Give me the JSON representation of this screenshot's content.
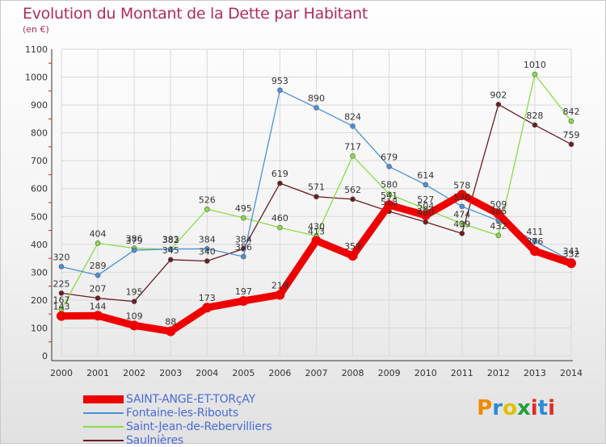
{
  "header": {
    "title": "Evolution du Montant de la Dette par Habitant",
    "subtitle": "(en €)"
  },
  "logo": {
    "text": "Proxiti",
    "colors": [
      "#f08a00",
      "#2a8ad8",
      "#e0c000",
      "#20a040",
      "#e02a2a",
      "#2a8ad8",
      "#e02a2a"
    ]
  },
  "chart_data": {
    "type": "line",
    "title": "Evolution du Montant de la Dette par Habitant",
    "ylabel": "(en €)",
    "xlabel": "",
    "x": [
      "2000",
      "2001",
      "2002",
      "2003",
      "2004",
      "2005",
      "2006",
      "2007",
      "2008",
      "2009",
      "2010",
      "2011",
      "2012",
      "2013",
      "2014"
    ],
    "ylim": [
      0,
      1100
    ],
    "yticks": [
      0,
      100,
      200,
      300,
      400,
      500,
      600,
      700,
      800,
      900,
      1000,
      1100
    ],
    "grid": true,
    "legend_position": "bottom-left",
    "series": [
      {
        "name": "Saulnières",
        "color": "#6b1c24",
        "values": [
          225,
          207,
          195,
          345,
          340,
          384,
          619,
          571,
          562,
          518,
          480,
          439,
          902,
          828,
          759
        ]
      },
      {
        "name": "Saint-Jean-de-Rebervilliers",
        "color": "#88dd44",
        "values": [
          167,
          404,
          386,
          382,
          526,
          495,
          460,
          430,
          717,
          580,
          527,
          474,
          432,
          1010,
          842
        ]
      },
      {
        "name": "Fontaine-les-Ribouts",
        "color": "#4a90d9",
        "values": [
          320,
          289,
          379,
          383,
          384,
          356,
          953,
          890,
          824,
          679,
          614,
          536,
          485,
          411,
          341
        ]
      },
      {
        "name": "SAINT-ANGE-ET-TORçAY",
        "color": "#ee0000",
        "values": [
          143,
          144,
          109,
          88,
          173,
          197,
          219,
          413,
          359,
          541,
          504,
          578,
          509,
          376,
          332
        ]
      }
    ]
  }
}
